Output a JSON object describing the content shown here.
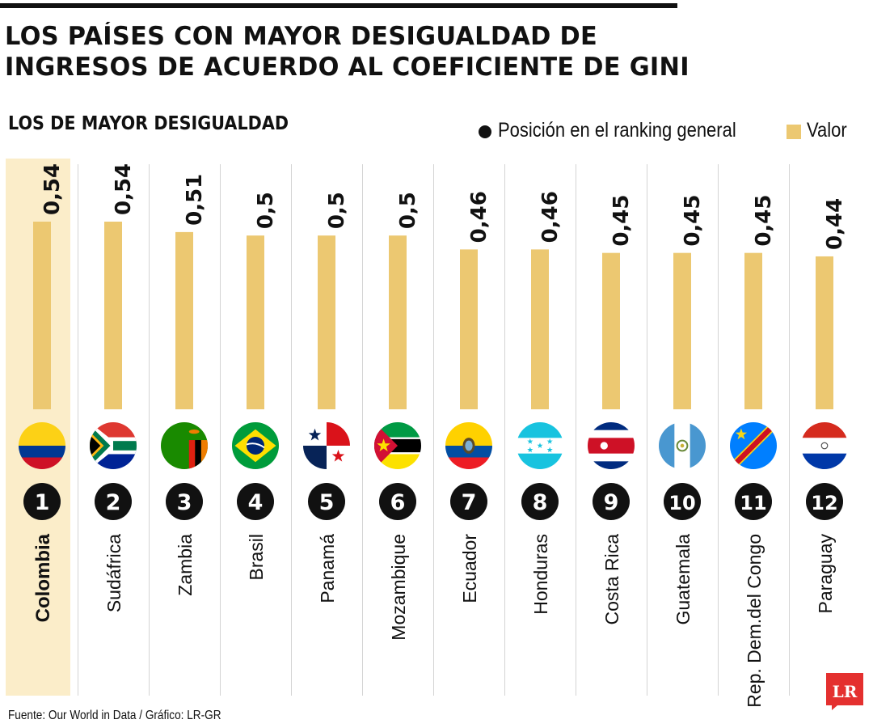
{
  "header": {
    "title_line1": "LOS PAÍSES CON MAYOR DESIGUALDAD DE",
    "title_line2": "INGRESOS DE ACUERDO AL COEFICIENTE DE GINI",
    "subtitle": "LOS DE MAYOR DESIGUALDAD"
  },
  "legend": {
    "rank_label": "Posición en el ranking general",
    "value_label": "Valor"
  },
  "colors": {
    "bar": "#ecc871",
    "highlight": "#fbedc9",
    "rank_circle": "#111111",
    "logo": "#e4302f"
  },
  "chart_data": {
    "type": "bar",
    "title": "LOS PAÍSES CON MAYOR DESIGUALDAD DE INGRESOS DE ACUERDO AL COEFICIENTE DE GINI",
    "subtitle": "LOS DE MAYOR DESIGUALDAD",
    "categories": [
      "Colombia",
      "Sudáfrica",
      "Zambia",
      "Brasil",
      "Panamá",
      "Mozambique",
      "Ecuador",
      "Honduras",
      "Costa Rica",
      "Guatemala",
      "Rep. Dem.del Congo",
      "Paraguay"
    ],
    "values": [
      0.54,
      0.54,
      0.51,
      0.5,
      0.5,
      0.5,
      0.46,
      0.46,
      0.45,
      0.45,
      0.45,
      0.44
    ],
    "value_labels": [
      "0,54",
      "0,54",
      "0,51",
      "0,5",
      "0,5",
      "0,5",
      "0,46",
      "0,46",
      "0,45",
      "0,45",
      "0,45",
      "0,44"
    ],
    "ranks": [
      "1",
      "2",
      "3",
      "4",
      "5",
      "6",
      "7",
      "8",
      "9",
      "10",
      "11",
      "12"
    ],
    "flags": [
      "colombia-flag-icon",
      "south-africa-flag-icon",
      "zambia-flag-icon",
      "brazil-flag-icon",
      "panama-flag-icon",
      "mozambique-flag-icon",
      "ecuador-flag-icon",
      "honduras-flag-icon",
      "costa-rica-flag-icon",
      "guatemala-flag-icon",
      "dr-congo-flag-icon",
      "paraguay-flag-icon"
    ],
    "highlighted": "Colombia",
    "xlabel": "",
    "ylabel": "",
    "ylim": [
      0,
      0.54
    ],
    "grid": false,
    "legend": "top-right"
  },
  "footer": {
    "source": "Fuente: Our World in Data / Gráfico: LR-GR",
    "logo_text": "LR"
  }
}
